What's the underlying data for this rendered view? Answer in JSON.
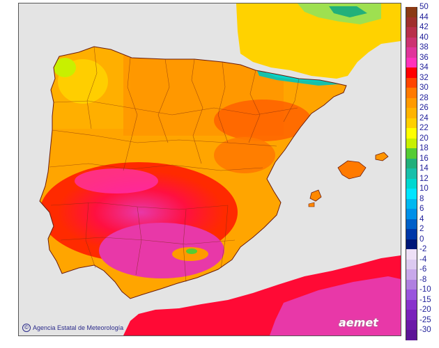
{
  "map": {
    "credit": "Agencia Estatal de Meteorología",
    "credit_symbol": "©",
    "logo": "aemet",
    "colors": {
      "sea": "#e4e4e4",
      "border": "#6a1b0b",
      "land_base": "#ffa500"
    }
  },
  "legend": {
    "positive": [
      {
        "value": "50",
        "color": "#8b3a14"
      },
      {
        "value": "44",
        "color": "#a0302c"
      },
      {
        "value": "42",
        "color": "#b8304a"
      },
      {
        "value": "40",
        "color": "#cc3370"
      },
      {
        "value": "38",
        "color": "#e0359a"
      },
      {
        "value": "36",
        "color": "#ff33bb"
      },
      {
        "value": "34",
        "color": "#ff0000"
      },
      {
        "value": "32",
        "color": "#ff4500"
      },
      {
        "value": "30",
        "color": "#ff7a00"
      },
      {
        "value": "28",
        "color": "#ff9a00"
      },
      {
        "value": "26",
        "color": "#ffb400"
      },
      {
        "value": "24",
        "color": "#ffd000"
      },
      {
        "value": "22",
        "color": "#ffff00"
      },
      {
        "value": "20",
        "color": "#c8f000"
      },
      {
        "value": "18",
        "color": "#55cc33"
      },
      {
        "value": "16",
        "color": "#22b07a"
      },
      {
        "value": "14",
        "color": "#18c0aa"
      },
      {
        "value": "12",
        "color": "#00d8d0"
      },
      {
        "value": "10",
        "color": "#00e5ff"
      },
      {
        "value": "8",
        "color": "#00b8f0"
      },
      {
        "value": "6",
        "color": "#0090e8"
      },
      {
        "value": "4",
        "color": "#0060c8"
      },
      {
        "value": "2",
        "color": "#0038a8"
      },
      {
        "value": "0",
        "color": "#001878"
      }
    ],
    "negative": [
      {
        "value": "-2",
        "color": "#eee0f6"
      },
      {
        "value": "-4",
        "color": "#dccaf0"
      },
      {
        "value": "-6",
        "color": "#c8a8ea"
      },
      {
        "value": "-8",
        "color": "#b080e0"
      },
      {
        "value": "-10",
        "color": "#9955dd"
      },
      {
        "value": "-15",
        "color": "#8833cc"
      },
      {
        "value": "-20",
        "color": "#7a22bb"
      },
      {
        "value": "-25",
        "color": "#6c1aa8"
      },
      {
        "value": "-30",
        "color": "#5c1496"
      }
    ]
  }
}
